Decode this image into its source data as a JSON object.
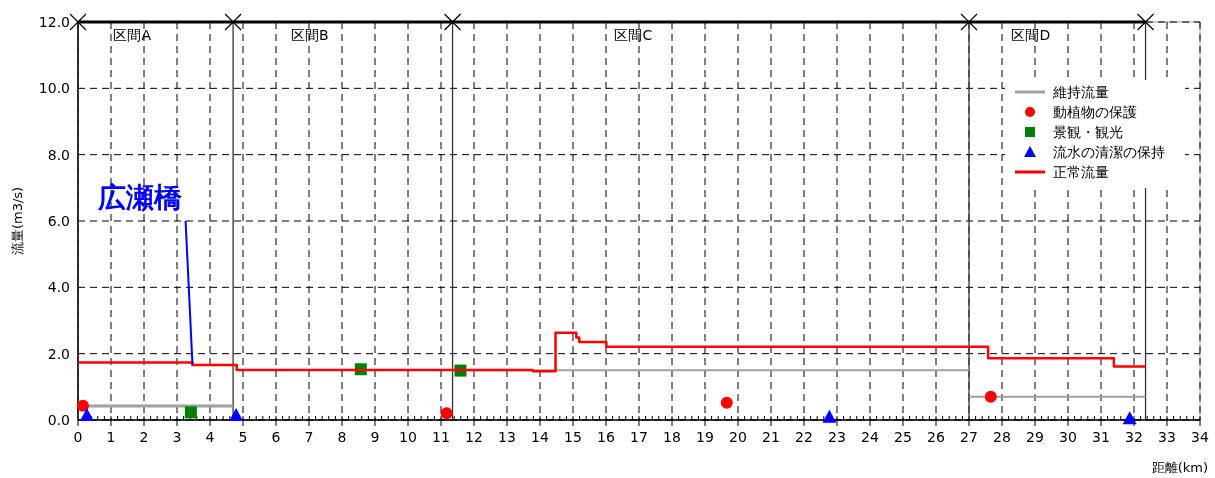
{
  "chart_data": {
    "type": "line",
    "xlabel": "距離(km)",
    "ylabel": "流量(m3/s)",
    "xlim": [
      0,
      34
    ],
    "ylim": [
      0,
      12
    ],
    "xticks": [
      0,
      1,
      2,
      3,
      4,
      5,
      6,
      7,
      8,
      9,
      10,
      11,
      12,
      13,
      14,
      15,
      16,
      17,
      18,
      19,
      20,
      21,
      22,
      23,
      24,
      25,
      26,
      27,
      28,
      29,
      30,
      31,
      32,
      33,
      34
    ],
    "yticks": [
      {
        "value": 0,
        "label": "0.0"
      },
      {
        "value": 2,
        "label": "2.0"
      },
      {
        "value": 4,
        "label": "4.0"
      },
      {
        "value": 6,
        "label": "6.0"
      },
      {
        "value": 8,
        "label": "8.0"
      },
      {
        "value": 10,
        "label": "10.0"
      },
      {
        "value": 12,
        "label": "12.0"
      }
    ],
    "grid": true,
    "legend": "top right",
    "series": [
      {
        "name": "維持流量",
        "color": "#a0a0a0",
        "x": [
          0.3,
          4.7
        ],
        "values": [
          0.42,
          0.42
        ]
      },
      {
        "color": "#a0a0a0",
        "x": [
          11.35,
          27.0
        ],
        "values": [
          1.5,
          1.5
        ]
      },
      {
        "color": "#a0a0a0",
        "x": [
          27.0,
          32.35
        ],
        "values": [
          0.7,
          0.7
        ]
      },
      {
        "name": "動植物の保護",
        "type": "scatter",
        "marker": "circle",
        "color": "#ff0000",
        "x": [
          0.15,
          11.17,
          19.66,
          27.66
        ],
        "values": [
          0.43,
          0.2,
          0.52,
          0.7
        ]
      },
      {
        "name": "景観・観光",
        "type": "scatter",
        "marker": "square",
        "color": "#008000",
        "x": [
          3.42,
          8.57,
          11.59
        ],
        "values": [
          0.23,
          1.53,
          1.49
        ]
      },
      {
        "name": "流水の清潔の保持",
        "type": "scatter",
        "marker": "triangle",
        "color": "#0000ff",
        "x": [
          0.27,
          4.79,
          22.77,
          31.87
        ],
        "values": [
          0.15,
          0.15,
          0.1,
          0.05
        ]
      },
      {
        "name": "正常流量",
        "type": "step",
        "color": "#ff0000",
        "x": [
          0,
          3.47,
          4.81,
          13.78,
          14.47,
          15.1,
          15.19,
          16.01,
          27.58,
          31.39,
          32.35
        ],
        "values": [
          1.73,
          1.66,
          1.51,
          1.47,
          2.63,
          2.49,
          2.35,
          2.21,
          1.86,
          1.61,
          1.61
        ]
      },
      {
        "color": "#0000ff",
        "x": [
          3.26,
          3.47
        ],
        "values": [
          6.0,
          1.66
        ]
      }
    ],
    "ref_lines": [
      {
        "axis": "x",
        "value": 0
      },
      {
        "axis": "x",
        "value": 4.7
      },
      {
        "axis": "x",
        "value": 11.35
      },
      {
        "axis": "x",
        "value": 27.0
      },
      {
        "axis": "x",
        "value": 32.35
      }
    ],
    "annotations": [
      "広瀬橋",
      "区間A",
      "区間B",
      "区間C",
      "区間D"
    ]
  }
}
